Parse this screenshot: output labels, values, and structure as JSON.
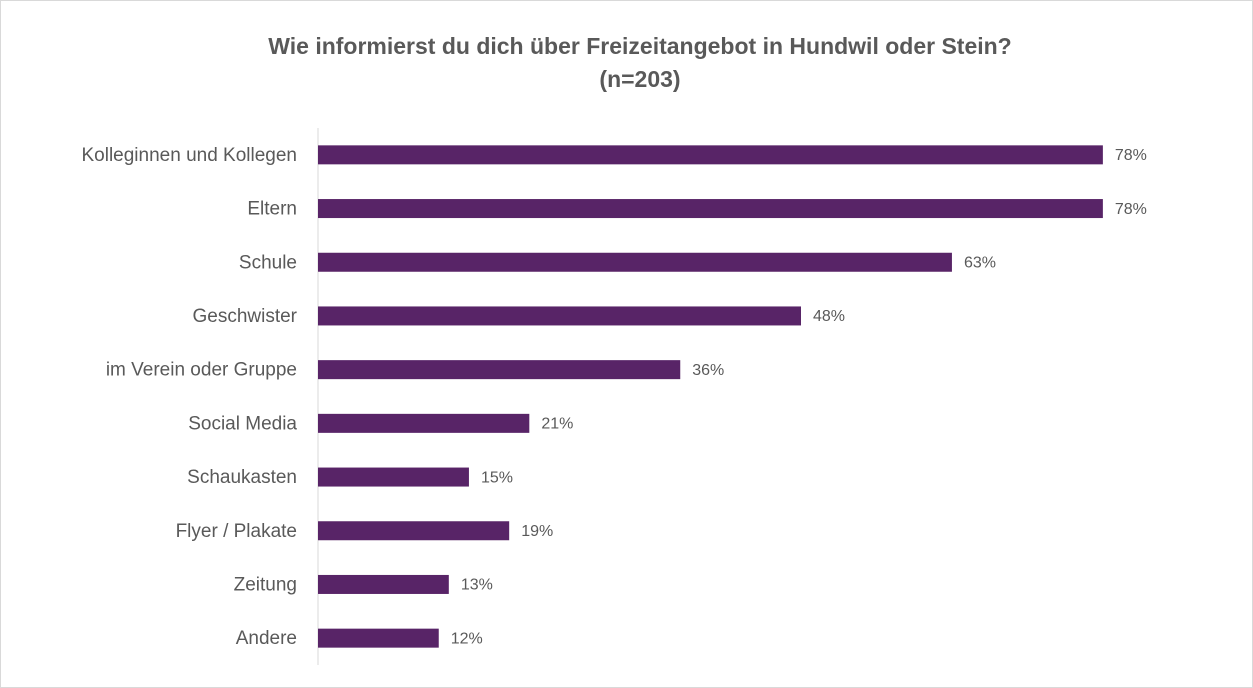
{
  "chart_data": {
    "type": "bar",
    "orientation": "horizontal",
    "title": "Wie informierst du dich über Freizeitangebot in Hundwil oder Stein?",
    "subtitle": "(n=203)",
    "categories": [
      "Kolleginnen und Kollegen",
      "Eltern",
      "Schule",
      "Geschwister",
      "im Verein oder Gruppe",
      "Social Media",
      "Schaukasten",
      "Flyer / Plakate",
      "Zeitung",
      "Andere"
    ],
    "values": [
      78,
      78,
      63,
      48,
      36,
      21,
      15,
      19,
      13,
      12
    ],
    "value_labels": [
      "78%",
      "78%",
      "63%",
      "48%",
      "36%",
      "21%",
      "15%",
      "19%",
      "13%",
      "12%"
    ],
    "color": "#582467",
    "xlim": [
      0,
      80
    ]
  }
}
